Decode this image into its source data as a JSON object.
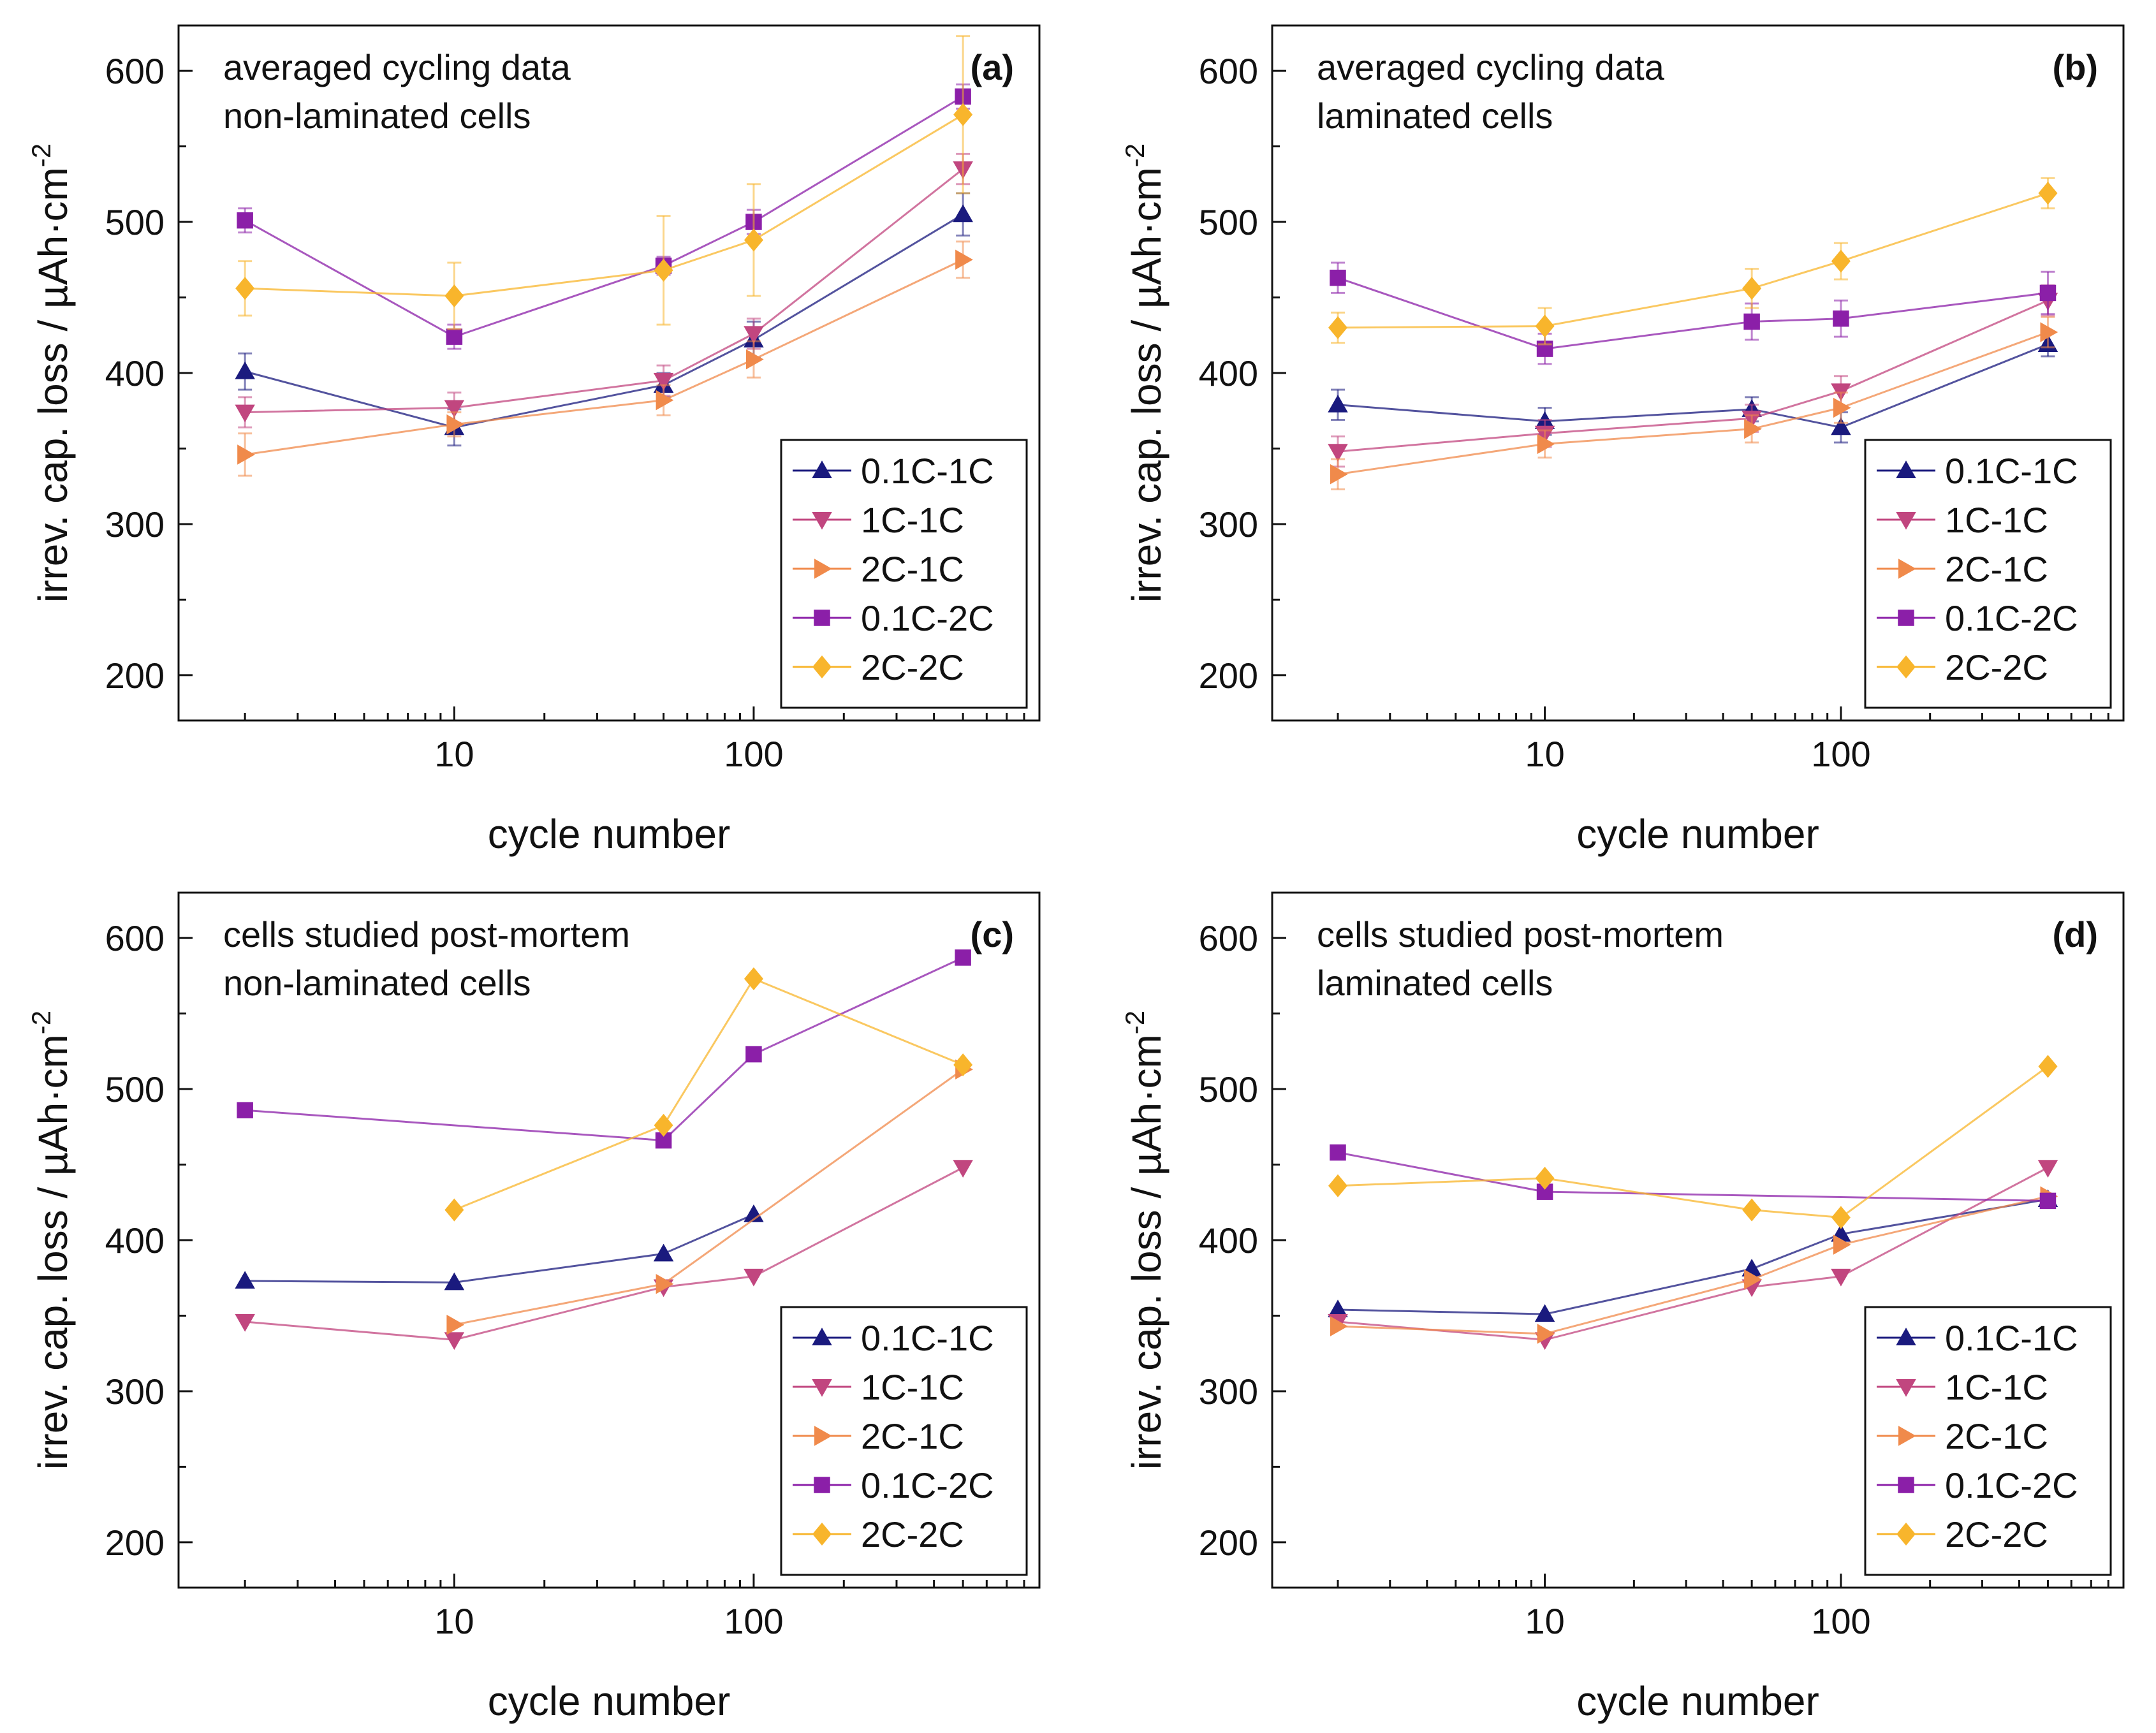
{
  "series_styles": [
    {
      "name": "0.1C-1C",
      "color": "#1a1a7e",
      "marker": "triangle-up"
    },
    {
      "name": "1C-1C",
      "color": "#c1467f",
      "marker": "triangle-down"
    },
    {
      "name": "2C-1C",
      "color": "#f08a4b",
      "marker": "triangle-right"
    },
    {
      "name": "0.1C-2C",
      "color": "#8b1fa8",
      "marker": "square"
    },
    {
      "name": "2C-2C",
      "color": "#f8b52c",
      "marker": "diamond"
    }
  ],
  "chart_data": [
    {
      "type": "line",
      "panel": "(a)",
      "title_lines": [
        "averaged cycling data",
        "non-laminated cells"
      ],
      "xlabel": "cycle number",
      "ylabel": "irrev. cap. loss / µAh·cm",
      "ylabel_sup": "-2",
      "xscale": "log",
      "xlim": [
        1.2,
        900
      ],
      "ylim": [
        170,
        630
      ],
      "xticks": [
        10,
        100
      ],
      "xtick_labels": [
        "10",
        "100"
      ],
      "yticks": [
        200,
        300,
        400,
        500,
        600
      ],
      "ytick_labels": [
        "200",
        "300",
        "400",
        "500",
        "600"
      ],
      "legend_position": "bottom-right",
      "series": [
        {
          "name": "0.1C-1C",
          "x": [
            2,
            10,
            50,
            100,
            500
          ],
          "y": [
            401,
            364,
            392,
            422,
            505
          ],
          "err": [
            12,
            12,
            8,
            12,
            14
          ]
        },
        {
          "name": "1C-1C",
          "x": [
            2,
            10,
            50,
            100,
            500
          ],
          "y": [
            374,
            377,
            395,
            426,
            535
          ],
          "err": [
            10,
            10,
            10,
            10,
            10
          ]
        },
        {
          "name": "2C-1C",
          "x": [
            2,
            10,
            50,
            100,
            500
          ],
          "y": [
            346,
            366,
            382,
            409,
            475
          ],
          "err": [
            14,
            8,
            10,
            12,
            12
          ]
        },
        {
          "name": "0.1C-2C",
          "x": [
            2,
            10,
            50,
            100,
            500
          ],
          "y": [
            501,
            424,
            471,
            500,
            583
          ],
          "err": [
            8,
            8,
            6,
            8,
            8
          ]
        },
        {
          "name": "2C-2C",
          "x": [
            2,
            10,
            50,
            100,
            500
          ],
          "y": [
            456,
            451,
            468,
            488,
            571
          ],
          "err": [
            18,
            22,
            36,
            37,
            52
          ]
        }
      ]
    },
    {
      "type": "line",
      "panel": "(b)",
      "title_lines": [
        "averaged cycling data",
        "laminated cells"
      ],
      "xlabel": "cycle number",
      "ylabel": "irrev. cap. loss / µAh·cm",
      "ylabel_sup": "-2",
      "xscale": "log",
      "xlim": [
        1.2,
        900
      ],
      "ylim": [
        170,
        630
      ],
      "xticks": [
        10,
        100
      ],
      "xtick_labels": [
        "10",
        "100"
      ],
      "yticks": [
        200,
        300,
        400,
        500,
        600
      ],
      "ytick_labels": [
        "200",
        "300",
        "400",
        "500",
        "600"
      ],
      "legend_position": "bottom-right",
      "series": [
        {
          "name": "0.1C-1C",
          "x": [
            2,
            10,
            50,
            100,
            500
          ],
          "y": [
            379,
            368,
            376,
            364,
            419
          ],
          "err": [
            10,
            9,
            8,
            10,
            8
          ]
        },
        {
          "name": "1C-1C",
          "x": [
            2,
            10,
            50,
            100,
            500
          ],
          "y": [
            348,
            360,
            370,
            388,
            448
          ],
          "err": [
            10,
            9,
            9,
            10,
            10
          ]
        },
        {
          "name": "2C-1C",
          "x": [
            2,
            10,
            50,
            100,
            500
          ],
          "y": [
            333,
            353,
            363,
            377,
            427
          ],
          "err": [
            10,
            9,
            9,
            10,
            10
          ]
        },
        {
          "name": "0.1C-2C",
          "x": [
            2,
            10,
            50,
            100,
            500
          ],
          "y": [
            463,
            416,
            434,
            436,
            453
          ],
          "err": [
            10,
            10,
            12,
            12,
            14
          ]
        },
        {
          "name": "2C-2C",
          "x": [
            2,
            10,
            50,
            100,
            500
          ],
          "y": [
            430,
            431,
            456,
            474,
            519
          ],
          "err": [
            10,
            12,
            13,
            12,
            10
          ]
        }
      ]
    },
    {
      "type": "line",
      "panel": "(c)",
      "title_lines": [
        "cells studied post-mortem",
        "non-laminated cells"
      ],
      "xlabel": "cycle number",
      "ylabel": "irrev. cap. loss / µAh·cm",
      "ylabel_sup": "-2",
      "xscale": "log",
      "xlim": [
        1.2,
        900
      ],
      "ylim": [
        170,
        630
      ],
      "xticks": [
        10,
        100
      ],
      "xtick_labels": [
        "10",
        "100"
      ],
      "yticks": [
        200,
        300,
        400,
        500,
        600
      ],
      "ytick_labels": [
        "200",
        "300",
        "400",
        "500",
        "600"
      ],
      "legend_position": "bottom-right",
      "series": [
        {
          "name": "0.1C-1C",
          "x": [
            2,
            10,
            50,
            100
          ],
          "y": [
            373,
            372,
            391,
            417
          ],
          "err": []
        },
        {
          "name": "1C-1C",
          "x": [
            2,
            10,
            50,
            100,
            500
          ],
          "y": [
            346,
            334,
            369,
            376,
            448
          ],
          "err": []
        },
        {
          "name": "2C-1C",
          "x": [
            10,
            50,
            500
          ],
          "y": [
            344,
            371,
            513
          ],
          "err": []
        },
        {
          "name": "0.1C-2C",
          "x": [
            2,
            50,
            100,
            500
          ],
          "y": [
            486,
            466,
            523,
            587
          ],
          "err": []
        },
        {
          "name": "2C-2C",
          "x": [
            10,
            50,
            100,
            500
          ],
          "y": [
            420,
            476,
            573,
            516
          ],
          "err": []
        }
      ]
    },
    {
      "type": "line",
      "panel": "(d)",
      "title_lines": [
        "cells studied post-mortem",
        "laminated cells"
      ],
      "xlabel": "cycle number",
      "ylabel": "irrev. cap. loss / µAh·cm",
      "ylabel_sup": "-2",
      "xscale": "log",
      "xlim": [
        1.2,
        900
      ],
      "ylim": [
        170,
        630
      ],
      "xticks": [
        10,
        100
      ],
      "xtick_labels": [
        "10",
        "100"
      ],
      "yticks": [
        200,
        300,
        400,
        500,
        600
      ],
      "ytick_labels": [
        "200",
        "300",
        "400",
        "500",
        "600"
      ],
      "legend_position": "bottom-right",
      "series": [
        {
          "name": "0.1C-1C",
          "x": [
            2,
            10,
            50,
            100,
            500
          ],
          "y": [
            354,
            351,
            381,
            404,
            427
          ],
          "err": []
        },
        {
          "name": "1C-1C",
          "x": [
            2,
            10,
            50,
            100,
            500
          ],
          "y": [
            346,
            334,
            369,
            376,
            448
          ],
          "err": []
        },
        {
          "name": "2C-1C",
          "x": [
            2,
            10,
            50,
            100,
            500
          ],
          "y": [
            343,
            338,
            374,
            397,
            429
          ],
          "err": []
        },
        {
          "name": "0.1C-2C",
          "x": [
            2,
            10,
            500
          ],
          "y": [
            458,
            432,
            426
          ],
          "err": []
        },
        {
          "name": "2C-2C",
          "x": [
            2,
            10,
            50,
            100,
            500
          ],
          "y": [
            436,
            441,
            420,
            415,
            515
          ],
          "err": []
        }
      ]
    }
  ]
}
